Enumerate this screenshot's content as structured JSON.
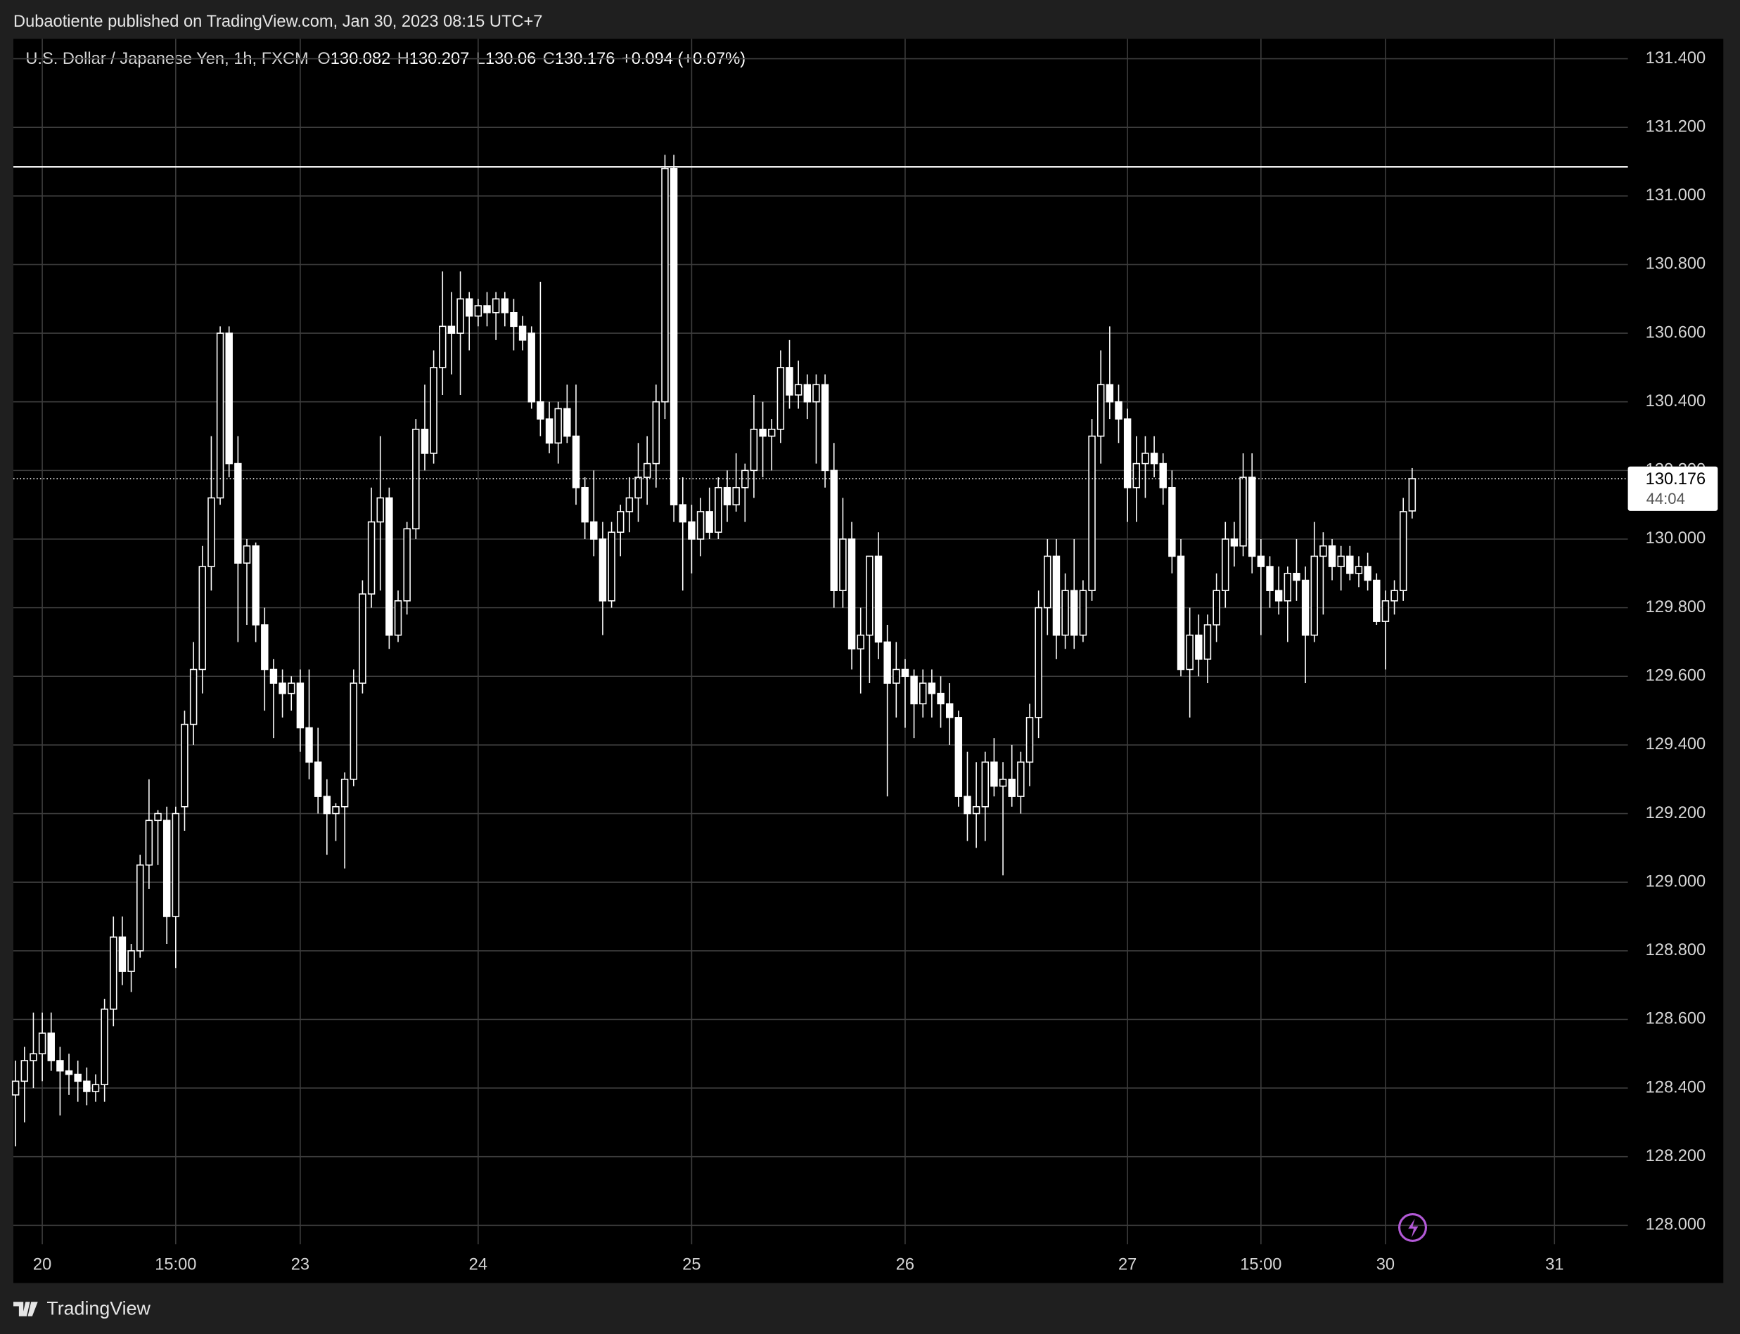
{
  "header": {
    "publisher": "Dubaotiente published on TradingView.com, Jan 30, 2023 08:15 UTC+7"
  },
  "footer": {
    "brand": "TradingView"
  },
  "chart_data": {
    "type": "candlestick",
    "symbol": "U.S. Dollar / Japanese Yen, 1h, FXCM",
    "legend_letters": [
      "O",
      "H",
      "L",
      "C"
    ],
    "change": "+0.094 (+0.07%)",
    "countdown": "44:04",
    "horizontal_line": 131.085,
    "up_color": "#000000",
    "down_color": "#ffffff",
    "wick_color": "#ffffff",
    "grid": true,
    "xlim": [
      -0.25,
      181.25
    ],
    "xticks": [
      {
        "value": 3,
        "label": "20"
      },
      {
        "value": 18,
        "label": "15:00"
      },
      {
        "value": 32,
        "label": "23"
      },
      {
        "value": 52,
        "label": "24"
      },
      {
        "value": 76,
        "label": "25"
      },
      {
        "value": 100,
        "label": "26"
      },
      {
        "value": 125,
        "label": "27"
      },
      {
        "value": 140,
        "label": "15:00"
      },
      {
        "value": 154,
        "label": "30"
      },
      {
        "value": 173,
        "label": "31"
      }
    ],
    "ylim": [
      127.945,
      131.458
    ],
    "yticks": [
      {
        "value": 128,
        "label": "128.000"
      },
      {
        "value": 128.2,
        "label": "128.200"
      },
      {
        "value": 128.4,
        "label": "128.400"
      },
      {
        "value": 128.6,
        "label": "128.600"
      },
      {
        "value": 128.8,
        "label": "128.800"
      },
      {
        "value": 129,
        "label": "129.000"
      },
      {
        "value": 129.2,
        "label": "129.200"
      },
      {
        "value": 129.4,
        "label": "129.400"
      },
      {
        "value": 129.6,
        "label": "129.600"
      },
      {
        "value": 129.8,
        "label": "129.800"
      },
      {
        "value": 130,
        "label": "130.000"
      },
      {
        "value": 130.2,
        "label": "130.200"
      },
      {
        "value": 130.4,
        "label": "130.400"
      },
      {
        "value": 130.6,
        "label": "130.600"
      },
      {
        "value": 130.8,
        "label": "130.800"
      },
      {
        "value": 131,
        "label": "131.000"
      },
      {
        "value": 131.2,
        "label": "131.200"
      },
      {
        "value": 131.4,
        "label": "131.400"
      }
    ],
    "ohlc": [
      [
        128.38,
        128.48,
        128.23,
        128.42
      ],
      [
        128.42,
        128.52,
        128.3,
        128.48
      ],
      [
        128.48,
        128.62,
        128.4,
        128.5
      ],
      [
        128.5,
        128.62,
        128.42,
        128.56
      ],
      [
        128.56,
        128.62,
        128.45,
        128.48
      ],
      [
        128.48,
        128.52,
        128.32,
        128.45
      ],
      [
        128.45,
        128.5,
        128.38,
        128.44
      ],
      [
        128.44,
        128.48,
        128.36,
        128.42
      ],
      [
        128.42,
        128.46,
        128.35,
        128.39
      ],
      [
        128.39,
        128.44,
        128.36,
        128.41
      ],
      [
        128.41,
        128.66,
        128.36,
        128.63
      ],
      [
        128.63,
        128.9,
        128.58,
        128.84
      ],
      [
        128.84,
        128.9,
        128.7,
        128.74
      ],
      [
        128.74,
        128.82,
        128.68,
        128.8
      ],
      [
        128.8,
        129.08,
        128.78,
        129.05
      ],
      [
        129.05,
        129.3,
        128.98,
        129.18
      ],
      [
        129.18,
        129.21,
        129.05,
        129.2
      ],
      [
        129.18,
        129.22,
        128.82,
        128.9
      ],
      [
        128.9,
        129.22,
        128.75,
        129.2
      ],
      [
        129.22,
        129.5,
        129.15,
        129.46
      ],
      [
        129.46,
        129.7,
        129.4,
        129.62
      ],
      [
        129.62,
        129.98,
        129.55,
        129.92
      ],
      [
        129.92,
        130.3,
        129.85,
        130.12
      ],
      [
        130.12,
        130.62,
        130.1,
        130.6
      ],
      [
        130.6,
        130.62,
        130.18,
        130.22
      ],
      [
        130.22,
        130.3,
        129.7,
        129.93
      ],
      [
        129.93,
        130,
        129.75,
        129.98
      ],
      [
        129.98,
        129.99,
        129.7,
        129.75
      ],
      [
        129.75,
        129.8,
        129.5,
        129.62
      ],
      [
        129.62,
        129.65,
        129.42,
        129.58
      ],
      [
        129.58,
        129.62,
        129.48,
        129.55
      ],
      [
        129.55,
        129.6,
        129.5,
        129.58
      ],
      [
        129.58,
        129.62,
        129.38,
        129.45
      ],
      [
        129.45,
        129.62,
        129.3,
        129.35
      ],
      [
        129.35,
        129.45,
        129.2,
        129.25
      ],
      [
        129.25,
        129.3,
        129.08,
        129.2
      ],
      [
        129.2,
        129.23,
        129.12,
        129.22
      ],
      [
        129.22,
        129.32,
        129.04,
        129.3
      ],
      [
        129.3,
        129.62,
        129.28,
        129.58
      ],
      [
        129.58,
        129.88,
        129.55,
        129.84
      ],
      [
        129.84,
        130.15,
        129.8,
        130.05
      ],
      [
        130.05,
        130.3,
        129.85,
        130.12
      ],
      [
        130.12,
        130.15,
        129.68,
        129.72
      ],
      [
        129.72,
        129.85,
        129.7,
        129.82
      ],
      [
        129.82,
        130.05,
        129.78,
        130.03
      ],
      [
        130.03,
        130.35,
        130,
        130.32
      ],
      [
        130.32,
        130.45,
        130.2,
        130.25
      ],
      [
        130.25,
        130.55,
        130.22,
        130.5
      ],
      [
        130.5,
        130.78,
        130.42,
        130.62
      ],
      [
        130.62,
        130.72,
        130.48,
        130.6
      ],
      [
        130.6,
        130.78,
        130.42,
        130.7
      ],
      [
        130.7,
        130.72,
        130.55,
        130.65
      ],
      [
        130.65,
        130.7,
        130.62,
        130.68
      ],
      [
        130.68,
        130.72,
        130.62,
        130.66
      ],
      [
        130.66,
        130.72,
        130.58,
        130.7
      ],
      [
        130.7,
        130.72,
        130.62,
        130.66
      ],
      [
        130.66,
        130.7,
        130.55,
        130.62
      ],
      [
        130.62,
        130.65,
        130.55,
        130.58
      ],
      [
        130.6,
        130.62,
        130.38,
        130.4
      ],
      [
        130.4,
        130.75,
        130.3,
        130.35
      ],
      [
        130.35,
        130.4,
        130.25,
        130.28
      ],
      [
        130.28,
        130.4,
        130.22,
        130.38
      ],
      [
        130.38,
        130.45,
        130.28,
        130.3
      ],
      [
        130.3,
        130.45,
        130.1,
        130.15
      ],
      [
        130.15,
        130.18,
        130,
        130.05
      ],
      [
        130.05,
        130.2,
        129.95,
        130
      ],
      [
        130,
        130.05,
        129.72,
        129.82
      ],
      [
        129.82,
        130.05,
        129.8,
        130.02
      ],
      [
        130.02,
        130.1,
        129.95,
        130.08
      ],
      [
        130.08,
        130.18,
        130.02,
        130.12
      ],
      [
        130.12,
        130.28,
        130.05,
        130.18
      ],
      [
        130.18,
        130.3,
        130.1,
        130.22
      ],
      [
        130.22,
        130.45,
        130.15,
        130.4
      ],
      [
        130.4,
        131.12,
        130.35,
        131.08
      ],
      [
        131.08,
        131.12,
        130.05,
        130.1
      ],
      [
        130.1,
        130.18,
        129.85,
        130.05
      ],
      [
        130.05,
        130.1,
        129.9,
        130
      ],
      [
        130,
        130.12,
        129.95,
        130.08
      ],
      [
        130.08,
        130.15,
        130,
        130.02
      ],
      [
        130.02,
        130.18,
        130,
        130.15
      ],
      [
        130.15,
        130.2,
        130.05,
        130.1
      ],
      [
        130.1,
        130.25,
        130.08,
        130.15
      ],
      [
        130.15,
        130.22,
        130.05,
        130.2
      ],
      [
        130.2,
        130.42,
        130.12,
        130.32
      ],
      [
        130.32,
        130.4,
        130.18,
        130.3
      ],
      [
        130.3,
        130.35,
        130.2,
        130.32
      ],
      [
        130.32,
        130.55,
        130.28,
        130.5
      ],
      [
        130.5,
        130.58,
        130.38,
        130.42
      ],
      [
        130.42,
        130.52,
        130.38,
        130.45
      ],
      [
        130.45,
        130.48,
        130.35,
        130.4
      ],
      [
        130.4,
        130.48,
        130.22,
        130.45
      ],
      [
        130.45,
        130.48,
        130.15,
        130.2
      ],
      [
        130.2,
        130.28,
        129.8,
        129.85
      ],
      [
        129.85,
        130.12,
        129.8,
        130
      ],
      [
        130,
        130.05,
        129.62,
        129.68
      ],
      [
        129.68,
        129.8,
        129.55,
        129.72
      ],
      [
        129.72,
        129.92,
        129.58,
        129.95
      ],
      [
        129.95,
        130.02,
        129.65,
        129.7
      ],
      [
        129.7,
        129.75,
        129.25,
        129.58
      ],
      [
        129.58,
        129.7,
        129.48,
        129.62
      ],
      [
        129.62,
        129.65,
        129.45,
        129.6
      ],
      [
        129.6,
        129.62,
        129.42,
        129.52
      ],
      [
        129.52,
        129.62,
        129.48,
        129.58
      ],
      [
        129.58,
        129.62,
        129.48,
        129.55
      ],
      [
        129.55,
        129.6,
        129.45,
        129.52
      ],
      [
        129.52,
        129.58,
        129.4,
        129.48
      ],
      [
        129.48,
        129.5,
        129.22,
        129.25
      ],
      [
        129.25,
        129.38,
        129.12,
        129.2
      ],
      [
        129.2,
        129.35,
        129.1,
        129.22
      ],
      [
        129.22,
        129.38,
        129.12,
        129.35
      ],
      [
        129.35,
        129.42,
        129.25,
        129.28
      ],
      [
        129.28,
        129.35,
        129.02,
        129.3
      ],
      [
        129.3,
        129.4,
        129.22,
        129.25
      ],
      [
        129.25,
        129.38,
        129.2,
        129.35
      ],
      [
        129.35,
        129.52,
        129.28,
        129.48
      ],
      [
        129.48,
        129.85,
        129.42,
        129.8
      ],
      [
        129.8,
        130,
        129.72,
        129.95
      ],
      [
        129.95,
        130,
        129.65,
        129.72
      ],
      [
        129.72,
        129.9,
        129.68,
        129.85
      ],
      [
        129.85,
        130,
        129.68,
        129.72
      ],
      [
        129.72,
        129.88,
        129.7,
        129.85
      ],
      [
        129.85,
        130.35,
        129.82,
        130.3
      ],
      [
        130.3,
        130.55,
        130.22,
        130.45
      ],
      [
        130.45,
        130.62,
        130.35,
        130.4
      ],
      [
        130.4,
        130.45,
        130.28,
        130.35
      ],
      [
        130.35,
        130.38,
        130.05,
        130.15
      ],
      [
        130.15,
        130.3,
        130.05,
        130.22
      ],
      [
        130.22,
        130.3,
        130.12,
        130.25
      ],
      [
        130.25,
        130.3,
        130.18,
        130.22
      ],
      [
        130.22,
        130.25,
        130.1,
        130.15
      ],
      [
        130.15,
        130.2,
        129.9,
        129.95
      ],
      [
        129.95,
        130,
        129.6,
        129.62
      ],
      [
        129.62,
        129.8,
        129.48,
        129.72
      ],
      [
        129.72,
        129.78,
        129.6,
        129.65
      ],
      [
        129.65,
        129.78,
        129.58,
        129.75
      ],
      [
        129.75,
        129.9,
        129.7,
        129.85
      ],
      [
        129.85,
        130.05,
        129.8,
        130
      ],
      [
        130,
        130.05,
        129.92,
        129.98
      ],
      [
        129.98,
        130.25,
        129.95,
        130.18
      ],
      [
        130.18,
        130.25,
        129.9,
        129.95
      ],
      [
        129.95,
        130,
        129.72,
        129.92
      ],
      [
        129.92,
        129.95,
        129.8,
        129.85
      ],
      [
        129.85,
        129.92,
        129.78,
        129.82
      ],
      [
        129.82,
        129.92,
        129.7,
        129.9
      ],
      [
        129.9,
        130,
        129.82,
        129.88
      ],
      [
        129.88,
        129.92,
        129.58,
        129.72
      ],
      [
        129.72,
        130.05,
        129.7,
        129.95
      ],
      [
        129.95,
        130.02,
        129.78,
        129.98
      ],
      [
        129.98,
        130,
        129.88,
        129.92
      ],
      [
        129.92,
        129.98,
        129.85,
        129.95
      ],
      [
        129.95,
        129.98,
        129.88,
        129.9
      ],
      [
        129.9,
        129.95,
        129.86,
        129.92
      ],
      [
        129.92,
        129.96,
        129.85,
        129.88
      ],
      [
        129.88,
        129.9,
        129.75,
        129.76
      ],
      [
        129.76,
        129.85,
        129.62,
        129.82
      ],
      [
        129.82,
        129.88,
        129.78,
        129.85
      ],
      [
        129.85,
        130.12,
        129.82,
        130.08
      ],
      [
        130.082,
        130.207,
        130.06,
        130.176
      ]
    ]
  }
}
